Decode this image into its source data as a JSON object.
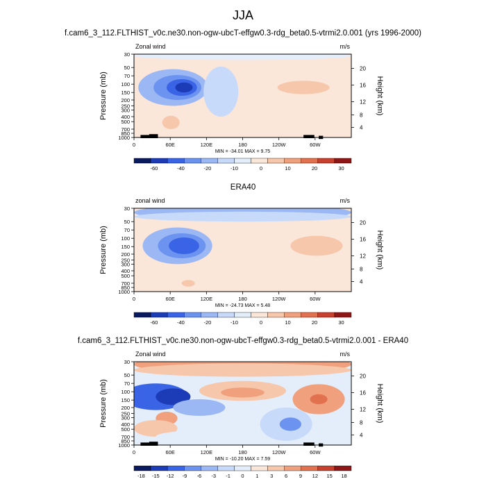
{
  "page": {
    "main_title": "JJA"
  },
  "colors": {
    "bg_light_blue": "#e4eefb",
    "bg_light_red": "#fbe6da",
    "colorbar_wind": [
      "#0a1a5e",
      "#1c3bb6",
      "#3a64e6",
      "#6c93f0",
      "#9bb8f5",
      "#c8dafa",
      "#e4eefb",
      "#fbe6da",
      "#f7c7ab",
      "#f0a07c",
      "#e2724f",
      "#c8402e",
      "#8e1616"
    ],
    "colorbar_diff": [
      "#0a1a5e",
      "#1c3bb6",
      "#3a64e6",
      "#6c93f0",
      "#9bb8f5",
      "#c8dafa",
      "#e4eefb",
      "#fbe6da",
      "#f7c7ab",
      "#f0a07c",
      "#e2724f",
      "#c8402e",
      "#8e1616"
    ]
  },
  "chart_data": [
    {
      "type": "heatmap",
      "title": "f.cam6_3_112.FLTHIST_v0c.ne30.non-ogw-ubcT-effgw0.3-rdg_beta0.5-vtrmi2.0.001 (yrs 1996-2000)",
      "variable_label": "Zonal wind",
      "units": "m/s",
      "ylabel": "Pressure (mb)",
      "ylabel_right": "Height (km)",
      "x_ticks": [
        "0",
        "60E",
        "120E",
        "180",
        "120W",
        "60W"
      ],
      "y_ticks": [
        "30",
        "50",
        "70",
        "100",
        "150",
        "200",
        "250",
        "300",
        "400",
        "500",
        "700",
        "850",
        "1000"
      ],
      "y_right_ticks": [
        "20",
        "16",
        "12",
        "8",
        "4"
      ],
      "stats": "MIN = -34.01   MAX =   9.75",
      "colorbar_labels": [
        "-60",
        "-40",
        "-20",
        "-10",
        "0",
        "10",
        "20",
        "30"
      ],
      "min": -34.01,
      "max": 9.75
    },
    {
      "type": "heatmap",
      "title": "ERA40",
      "variable_label": "zonal wind",
      "units": "m/s",
      "ylabel": "Pressure (mb)",
      "ylabel_right": "Height (km)",
      "x_ticks": [
        "0",
        "60E",
        "120E",
        "180",
        "120W",
        "60W"
      ],
      "y_ticks": [
        "30",
        "50",
        "70",
        "100",
        "150",
        "200",
        "250",
        "300",
        "400",
        "500",
        "700",
        "850",
        "1000"
      ],
      "y_right_ticks": [
        "20",
        "16",
        "12",
        "8",
        "4"
      ],
      "stats": "MIN = -24.73   MAX =   5.48",
      "colorbar_labels": [
        "-60",
        "-40",
        "-20",
        "-10",
        "0",
        "10",
        "20",
        "30"
      ],
      "min": -24.73,
      "max": 5.48
    },
    {
      "type": "heatmap",
      "title": "f.cam6_3_112.FLTHIST_v0c.ne30.non-ogw-ubcT-effgw0.3-rdg_beta0.5-vtrmi2.0.001 - ERA40",
      "variable_label": "Zonal wind",
      "units": "m/s",
      "ylabel": "Pressure (mb)",
      "ylabel_right": "Height (km)",
      "x_ticks": [
        "0",
        "60E",
        "120E",
        "180",
        "120W",
        "60W"
      ],
      "y_ticks": [
        "30",
        "50",
        "70",
        "100",
        "150",
        "200",
        "250",
        "300",
        "400",
        "500",
        "700",
        "850",
        "1000"
      ],
      "y_right_ticks": [
        "20",
        "16",
        "12",
        "8",
        "4"
      ],
      "stats": "MIN = -10.20   MAX =   7.59",
      "colorbar_labels": [
        "-18",
        "-15",
        "-12",
        "-9",
        "-6",
        "-3",
        "-1",
        "0",
        "1",
        "3",
        "6",
        "9",
        "12",
        "15",
        "18"
      ],
      "min": -10.2,
      "max": 7.59
    }
  ]
}
